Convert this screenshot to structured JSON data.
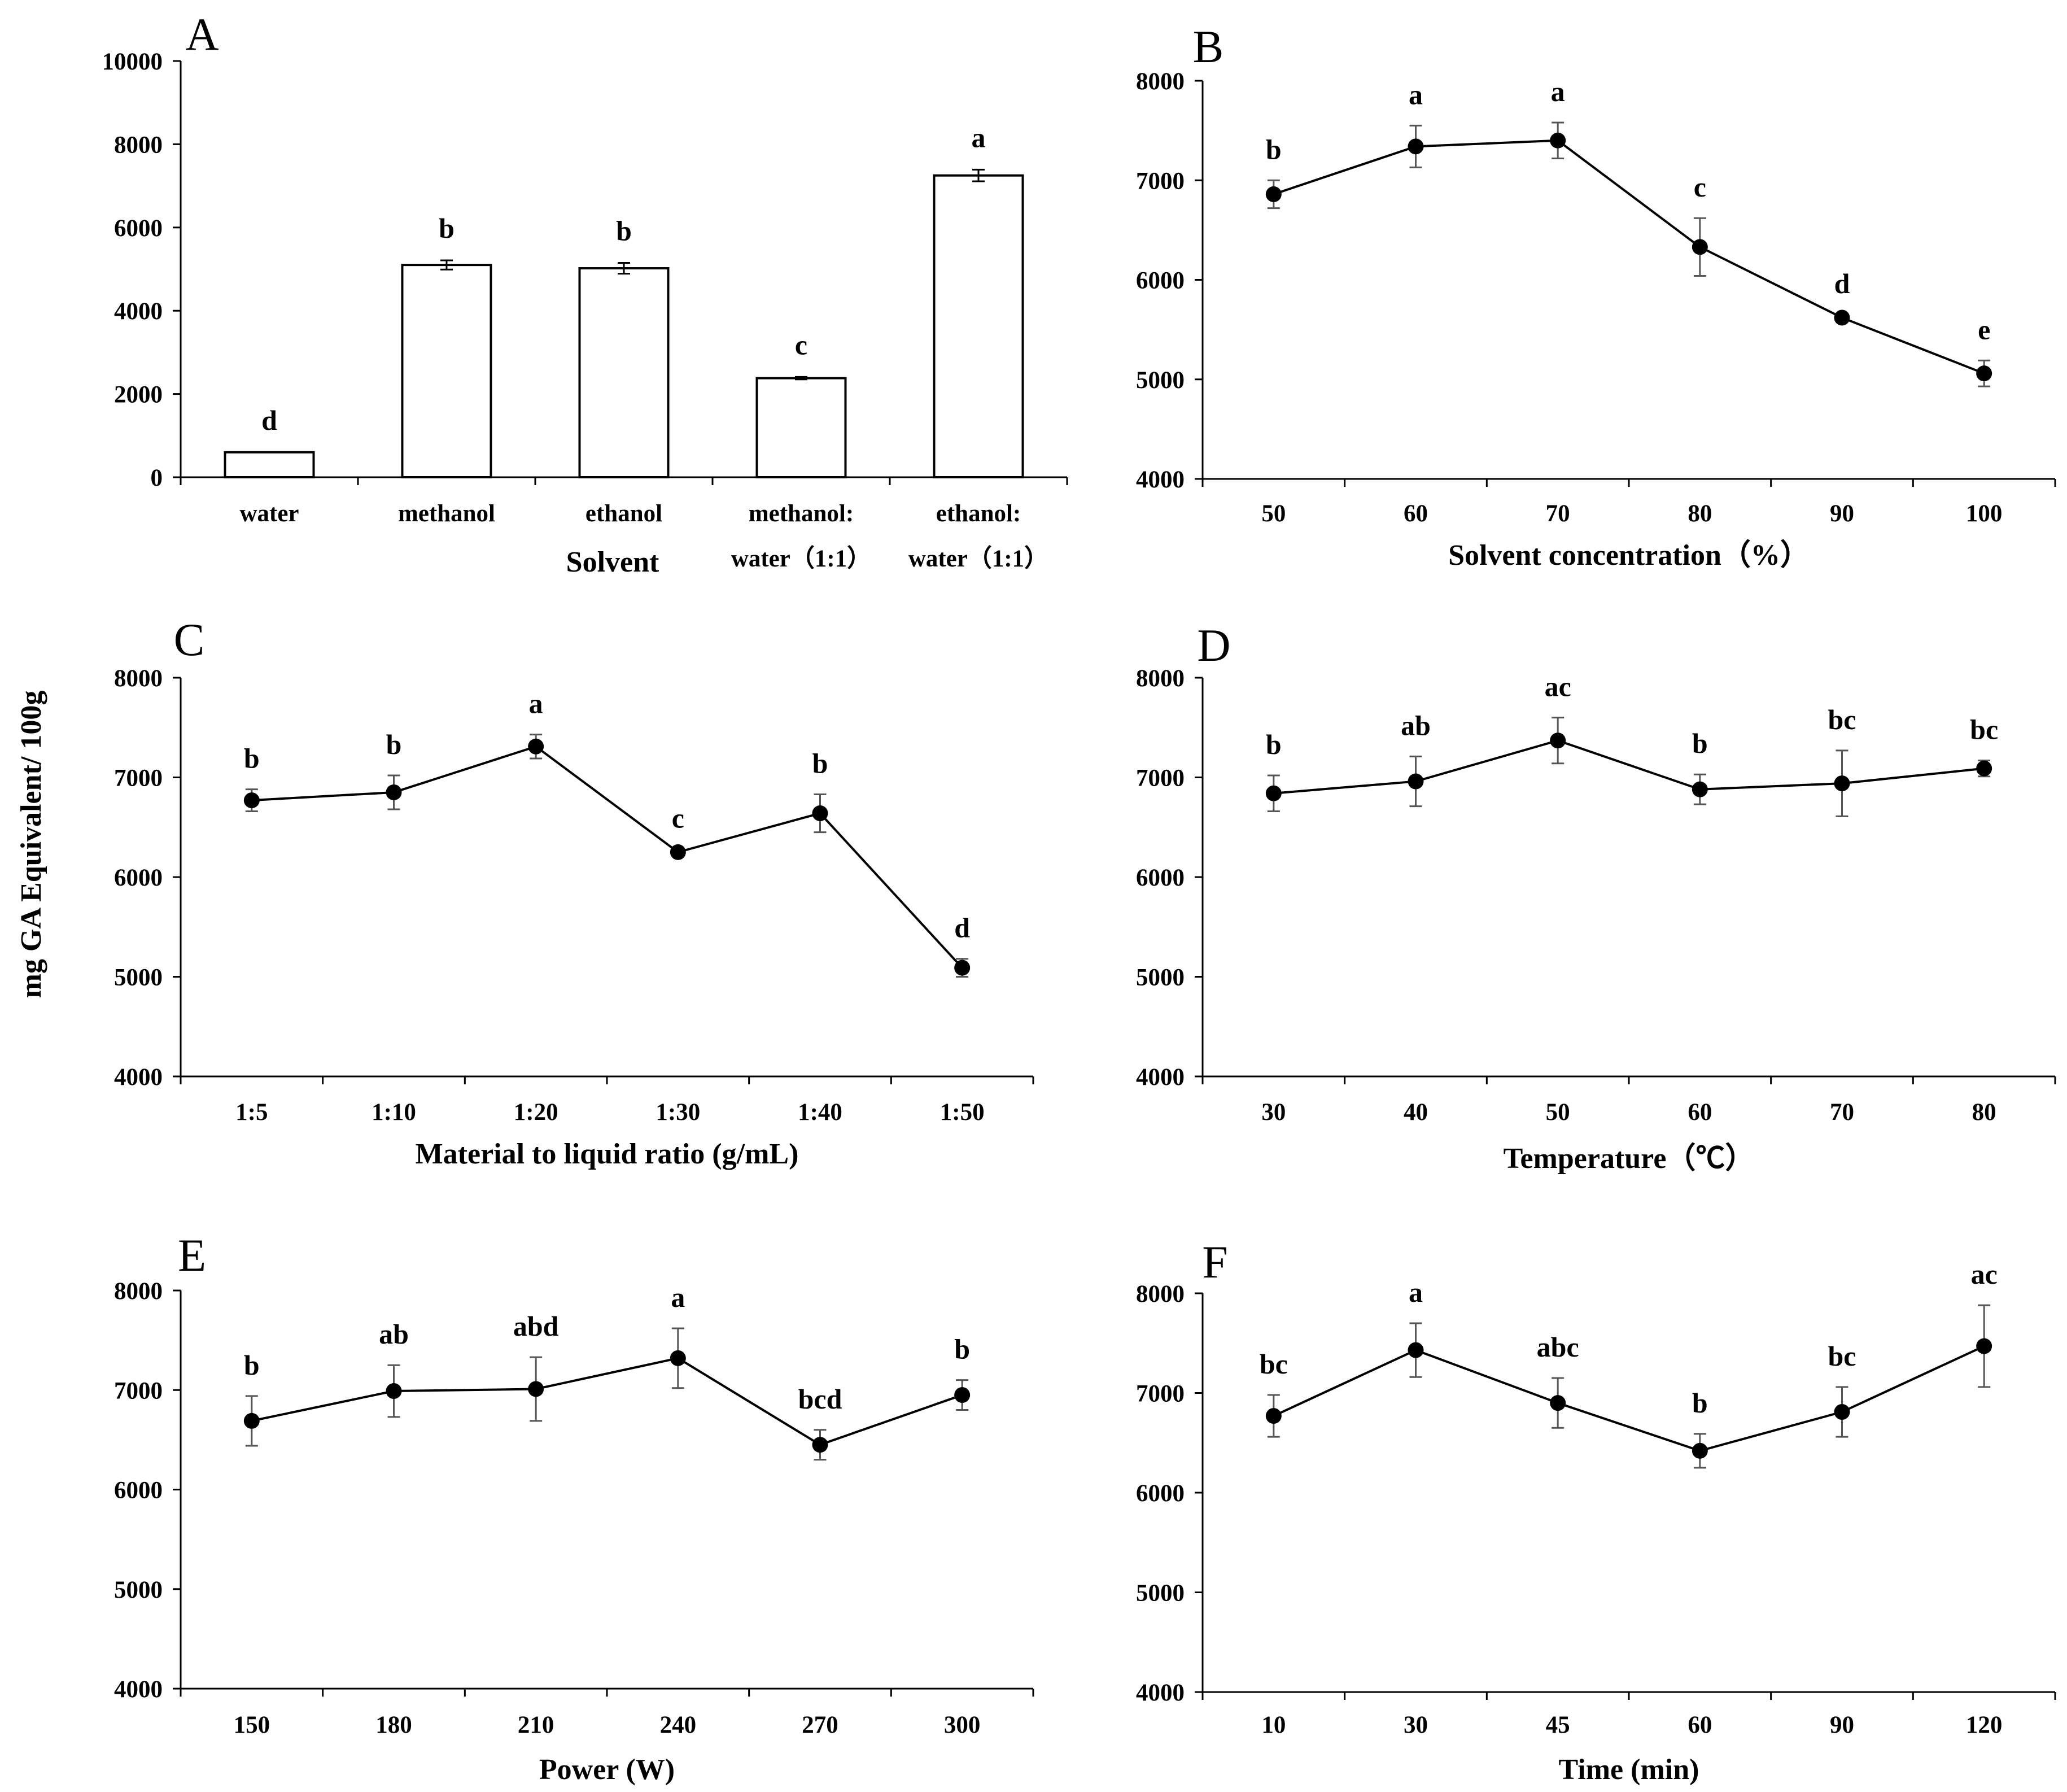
{
  "figure": {
    "shared_ylabel": "mg GA Equivalent/ 100g"
  },
  "chart_data": [
    {
      "panel": "A",
      "type": "bar",
      "categories": [
        "water",
        "methanol",
        "ethanol",
        "methanol:\nwater（1:1）",
        "ethanol:\nwater（1:1）"
      ],
      "values": [
        600,
        5100,
        5020,
        2380,
        7250
      ],
      "errors": [
        0,
        110,
        130,
        30,
        140
      ],
      "significance": [
        "d",
        "b",
        "b",
        "c",
        "a"
      ],
      "xlabel": "Solvent",
      "ylabel": "",
      "ylim": [
        0,
        10000
      ],
      "yticks": [
        0,
        2000,
        4000,
        6000,
        8000,
        10000
      ]
    },
    {
      "panel": "B",
      "type": "line",
      "categories": [
        "50",
        "60",
        "70",
        "80",
        "90",
        "100"
      ],
      "values": [
        6860,
        7340,
        7400,
        6330,
        5620,
        5060
      ],
      "errors": [
        140,
        210,
        180,
        290,
        30,
        130
      ],
      "significance": [
        "b",
        "a",
        "a",
        "c",
        "d",
        "e"
      ],
      "xlabel": "Solvent concentration（%）",
      "ylabel": "",
      "ylim": [
        4000,
        8000
      ],
      "yticks": [
        4000,
        5000,
        6000,
        7000,
        8000
      ]
    },
    {
      "panel": "C",
      "type": "line",
      "categories": [
        "1:5",
        "1:10",
        "1:20",
        "1:30",
        "1:40",
        "1:50"
      ],
      "values": [
        6770,
        6850,
        7310,
        6250,
        6640,
        5090
      ],
      "errors": [
        110,
        170,
        120,
        30,
        190,
        90
      ],
      "significance": [
        "b",
        "b",
        "a",
        "c",
        "b",
        "d"
      ],
      "xlabel": "Material to liquid ratio (g/mL)",
      "ylabel": "mg GA Equivalent/ 100g",
      "ylim": [
        4000,
        8000
      ],
      "yticks": [
        4000,
        5000,
        6000,
        7000,
        8000
      ]
    },
    {
      "panel": "D",
      "type": "line",
      "categories": [
        "30",
        "40",
        "50",
        "60",
        "70",
        "80"
      ],
      "values": [
        6840,
        6960,
        7370,
        6880,
        6940,
        7090
      ],
      "errors": [
        180,
        250,
        230,
        150,
        330,
        80
      ],
      "significance": [
        "b",
        "ab",
        "ac",
        "b",
        "bc",
        "bc"
      ],
      "xlabel": "Temperature（℃）",
      "ylabel": "",
      "ylim": [
        4000,
        8000
      ],
      "yticks": [
        4000,
        5000,
        6000,
        7000,
        8000
      ]
    },
    {
      "panel": "E",
      "type": "line",
      "categories": [
        "150",
        "180",
        "210",
        "240",
        "270",
        "300"
      ],
      "values": [
        6690,
        6990,
        7010,
        7320,
        6450,
        6950
      ],
      "errors": [
        250,
        260,
        320,
        300,
        150,
        150
      ],
      "significance": [
        "b",
        "ab",
        "abd",
        "a",
        "bcd",
        "b"
      ],
      "xlabel": "Power (W)",
      "ylabel": "",
      "ylim": [
        4000,
        8000
      ],
      "yticks": [
        4000,
        5000,
        6000,
        7000,
        8000
      ]
    },
    {
      "panel": "F",
      "type": "line",
      "categories": [
        "10",
        "30",
        "45",
        "60",
        "90",
        "120"
      ],
      "values": [
        6770,
        7430,
        6900,
        6420,
        6810,
        7470
      ],
      "errors": [
        210,
        270,
        250,
        170,
        250,
        410
      ],
      "significance": [
        "bc",
        "a",
        "abc",
        "b",
        "bc",
        "ac"
      ],
      "xlabel": "Time (min)",
      "ylabel": "",
      "ylim": [
        4000,
        8000
      ],
      "yticks": [
        4000,
        5000,
        6000,
        7000,
        8000
      ]
    }
  ]
}
